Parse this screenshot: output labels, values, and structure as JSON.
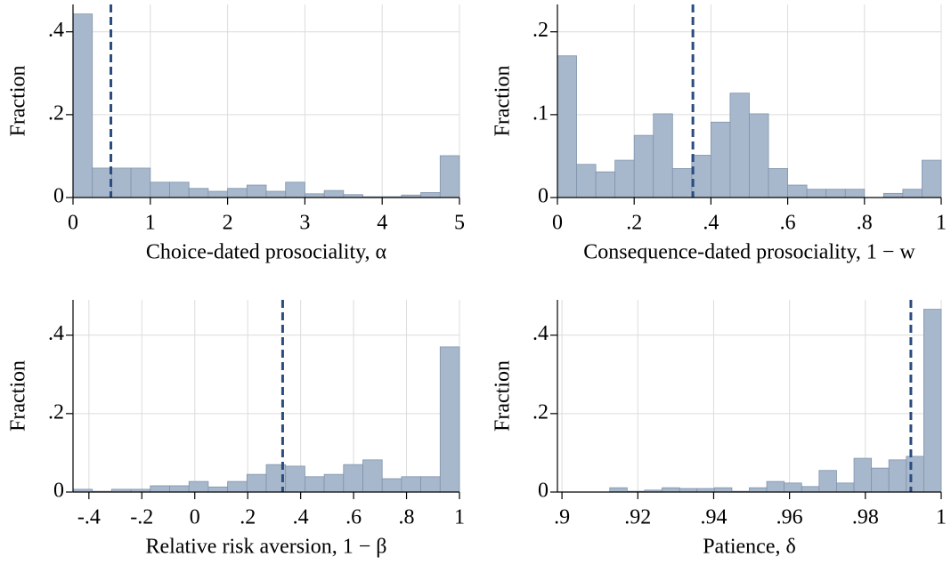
{
  "chart_data": [
    {
      "type": "histogram",
      "xlabel": "Choice-dated prosociality, α",
      "ylabel": "Fraction",
      "bins": [
        0,
        0.25,
        0.5,
        0.75,
        1,
        1.25,
        1.5,
        1.75,
        2,
        2.25,
        2.5,
        2.75,
        3,
        3.25,
        3.5,
        3.75,
        4,
        4.25,
        4.5,
        4.75,
        5
      ],
      "values": [
        0.443,
        0.071,
        0.071,
        0.071,
        0.037,
        0.037,
        0.022,
        0.015,
        0.022,
        0.03,
        0.015,
        0.037,
        0.009,
        0.017,
        0.007,
        0.002,
        0.002,
        0.006,
        0.012,
        0.101
      ],
      "color": "#a8b8cc",
      "edgecolor": "#7f93ab",
      "vline": 0.49,
      "vline_color": "#2b4c7e",
      "xlim": [
        0,
        5
      ],
      "ylim": [
        0,
        0.466
      ],
      "xticks": [
        0,
        1,
        2,
        3,
        4,
        5
      ],
      "yticks": [
        0,
        {
          "value": 0.2,
          "label": ".2"
        },
        {
          "value": 0.4,
          "label": ".4"
        }
      ],
      "grid": true
    },
    {
      "type": "histogram",
      "xlabel": "Consequence-dated prosociality, 1 − w",
      "ylabel": "Fraction",
      "bins": [
        0,
        0.05,
        0.1,
        0.15,
        0.2,
        0.25,
        0.3,
        0.35,
        0.4,
        0.45,
        0.5,
        0.55,
        0.6,
        0.65,
        0.7,
        0.75,
        0.8,
        0.85,
        0.9,
        0.95,
        1
      ],
      "values": [
        0.171,
        0.04,
        0.031,
        0.045,
        0.075,
        0.101,
        0.035,
        0.051,
        0.091,
        0.126,
        0.101,
        0.035,
        0.015,
        0.01,
        0.01,
        0.01,
        0,
        0.005,
        0.01,
        0.045
      ],
      "color": "#a8b8cc",
      "edgecolor": "#7f93ab",
      "vline": 0.353,
      "vline_color": "#2b4c7e",
      "xlim": [
        0,
        1
      ],
      "ylim": [
        0,
        0.233
      ],
      "xticks": [
        0,
        {
          "value": 0.2,
          "label": ".2"
        },
        {
          "value": 0.4,
          "label": ".4"
        },
        {
          "value": 0.6,
          "label": ".6"
        },
        {
          "value": 0.8,
          "label": ".8"
        },
        1
      ],
      "yticks": [
        0,
        {
          "value": 0.1,
          "label": ".1"
        },
        {
          "value": 0.2,
          "label": ".2"
        }
      ],
      "grid": true
    },
    {
      "type": "histogram",
      "xlabel": "Relative risk aversion, 1 − β",
      "ylabel": "Fraction",
      "bins": [
        -0.46,
        -0.387,
        -0.314,
        -0.241,
        -0.168,
        -0.095,
        -0.022,
        0.051,
        0.124,
        0.197,
        0.27,
        0.343,
        0.416,
        0.489,
        0.562,
        0.635,
        0.708,
        0.781,
        0.854,
        0.927,
        1
      ],
      "values": [
        0.007,
        0.002,
        0.007,
        0.007,
        0.016,
        0.016,
        0.027,
        0.013,
        0.027,
        0.045,
        0.07,
        0.066,
        0.039,
        0.045,
        0.07,
        0.082,
        0.034,
        0.039,
        0.039,
        0.37
      ],
      "color": "#a8b8cc",
      "edgecolor": "#7f93ab",
      "vline": 0.332,
      "vline_color": "#2b4c7e",
      "xlim": [
        -0.46,
        1
      ],
      "ylim": [
        0,
        0.49
      ],
      "xticks": [
        {
          "value": -0.4,
          "label": "-.4"
        },
        {
          "value": -0.2,
          "label": "-.2"
        },
        0,
        {
          "value": 0.2,
          "label": ".2"
        },
        {
          "value": 0.4,
          "label": ".4"
        },
        {
          "value": 0.6,
          "label": ".6"
        },
        {
          "value": 0.8,
          "label": ".8"
        },
        1
      ],
      "yticks": [
        0,
        {
          "value": 0.2,
          "label": ".2"
        },
        {
          "value": 0.4,
          "label": ".4"
        }
      ],
      "grid": true
    },
    {
      "type": "histogram",
      "xlabel": "Patience, δ",
      "ylabel": "Fraction",
      "bins": [
        0.8988,
        0.9034,
        0.908,
        0.9126,
        0.9172,
        0.9218,
        0.9264,
        0.931,
        0.9356,
        0.9402,
        0.9448,
        0.9494,
        0.954,
        0.9586,
        0.9632,
        0.9678,
        0.9724,
        0.977,
        0.9816,
        0.9862,
        0.9908,
        0.9954,
        1
      ],
      "values": [
        0,
        0,
        0,
        0.011,
        0.002,
        0.005,
        0.011,
        0.009,
        0.009,
        0.011,
        0.002,
        0.011,
        0.027,
        0.023,
        0.014,
        0.055,
        0.023,
        0.086,
        0.061,
        0.082,
        0.091,
        0.466
      ],
      "color": "#a8b8cc",
      "edgecolor": "#7f93ab",
      "vline": 0.992,
      "vline_color": "#2b4c7e",
      "xlim": [
        0.8988,
        1
      ],
      "ylim": [
        0,
        0.49
      ],
      "xticks": [
        {
          "value": 0.9,
          "label": ".9"
        },
        {
          "value": 0.92,
          "label": ".92"
        },
        {
          "value": 0.94,
          "label": ".94"
        },
        {
          "value": 0.96,
          "label": ".96"
        },
        {
          "value": 0.98,
          "label": ".98"
        },
        1
      ],
      "yticks": [
        0,
        {
          "value": 0.2,
          "label": ".2"
        },
        {
          "value": 0.4,
          "label": ".4"
        }
      ],
      "grid": true
    }
  ]
}
